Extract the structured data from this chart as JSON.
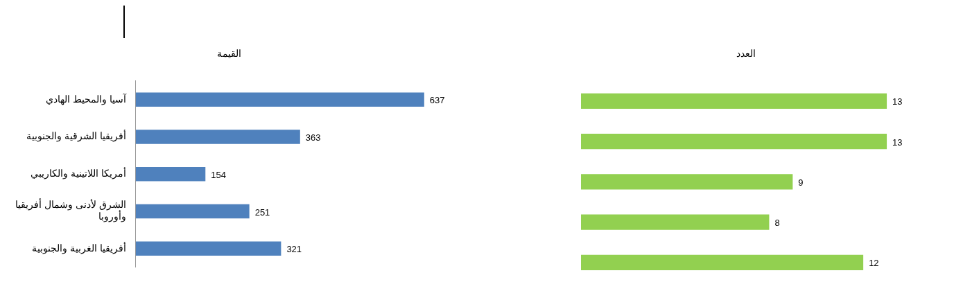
{
  "chart_data": [
    {
      "type": "bar",
      "orientation": "horizontal",
      "title": "القيمة",
      "categories": [
        "آسيا والمحيط الهادي",
        "أفريقيا الشرقية والجنوبية",
        "أمريكا اللاتينية والكاريبي",
        "الشرق لأدنى وشمال أفريقيا وأوروبا",
        "أفريقيا الغربية والجنوبية"
      ],
      "values": [
        637,
        363,
        154,
        251,
        321
      ],
      "color": "#4f81bd",
      "data_labels": true,
      "tick_labels": "y"
    },
    {
      "type": "bar",
      "orientation": "horizontal",
      "title": "العدد",
      "categories": [
        null,
        null,
        null,
        null,
        null
      ],
      "values": [
        13,
        13,
        9,
        8,
        12
      ],
      "color": "#92d050",
      "data_labels": true,
      "tick_labels": false
    }
  ]
}
